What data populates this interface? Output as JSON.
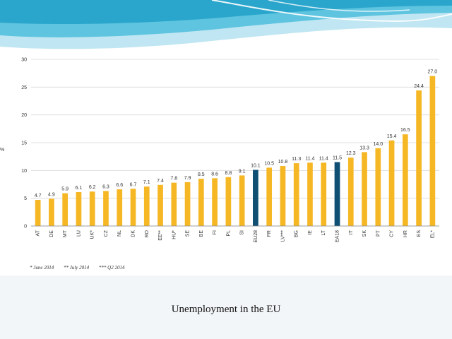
{
  "slide": {
    "caption": "Unemployment in the EU",
    "footnotes": [
      "* June 2014",
      "** July 2014",
      "*** Q2 2014"
    ]
  },
  "colors": {
    "bar_default": "#F6B725",
    "bar_highlight": "#0E4F73",
    "gridline": "#d9d9d9",
    "axis": "#888888",
    "band_top": "#bfe6f2",
    "band_mid": "#5ec4df"
  },
  "chart_data": {
    "type": "bar",
    "title": "",
    "xlabel": "",
    "ylabel": "%",
    "ylim": [
      0,
      30
    ],
    "yticks": [
      0,
      5,
      10,
      15,
      20,
      25,
      30
    ],
    "categories": [
      "AT",
      "DE",
      "MT",
      "LU",
      "UK*",
      "CZ",
      "NL",
      "DK",
      "RO",
      "EE**",
      "HU*",
      "SE",
      "BE",
      "FI",
      "PL",
      "SI",
      "EU28",
      "FR",
      "LV***",
      "BG",
      "IE",
      "LT",
      "EA18",
      "IT",
      "SK",
      "PT",
      "CY",
      "HR",
      "ES",
      "EL*"
    ],
    "values": [
      4.7,
      4.9,
      5.9,
      6.1,
      6.2,
      6.3,
      6.6,
      6.7,
      7.1,
      7.4,
      7.8,
      7.9,
      8.5,
      8.6,
      8.8,
      9.1,
      10.1,
      10.5,
      10.8,
      11.3,
      11.4,
      11.4,
      11.5,
      12.3,
      13.3,
      14.0,
      15.4,
      16.5,
      24.4,
      27.0
    ],
    "value_labels": [
      "4.7",
      "4.9",
      "5.9",
      "6.1",
      "6.2",
      "6.3",
      "6.6",
      "6.7",
      "7.1",
      "7.4",
      "7.8",
      "7.9",
      "8.5",
      "8.6",
      "8.8",
      "9.1",
      "10.1",
      "10.5",
      "10.8",
      "11.3",
      "11.4",
      "11.4",
      "11.5",
      "12.3",
      "13.3",
      "14.0",
      "15.4",
      "16.5",
      "24.4",
      "27.0"
    ],
    "highlighted": [
      "EU28",
      "EA18"
    ],
    "grid": true,
    "legend": "none"
  }
}
